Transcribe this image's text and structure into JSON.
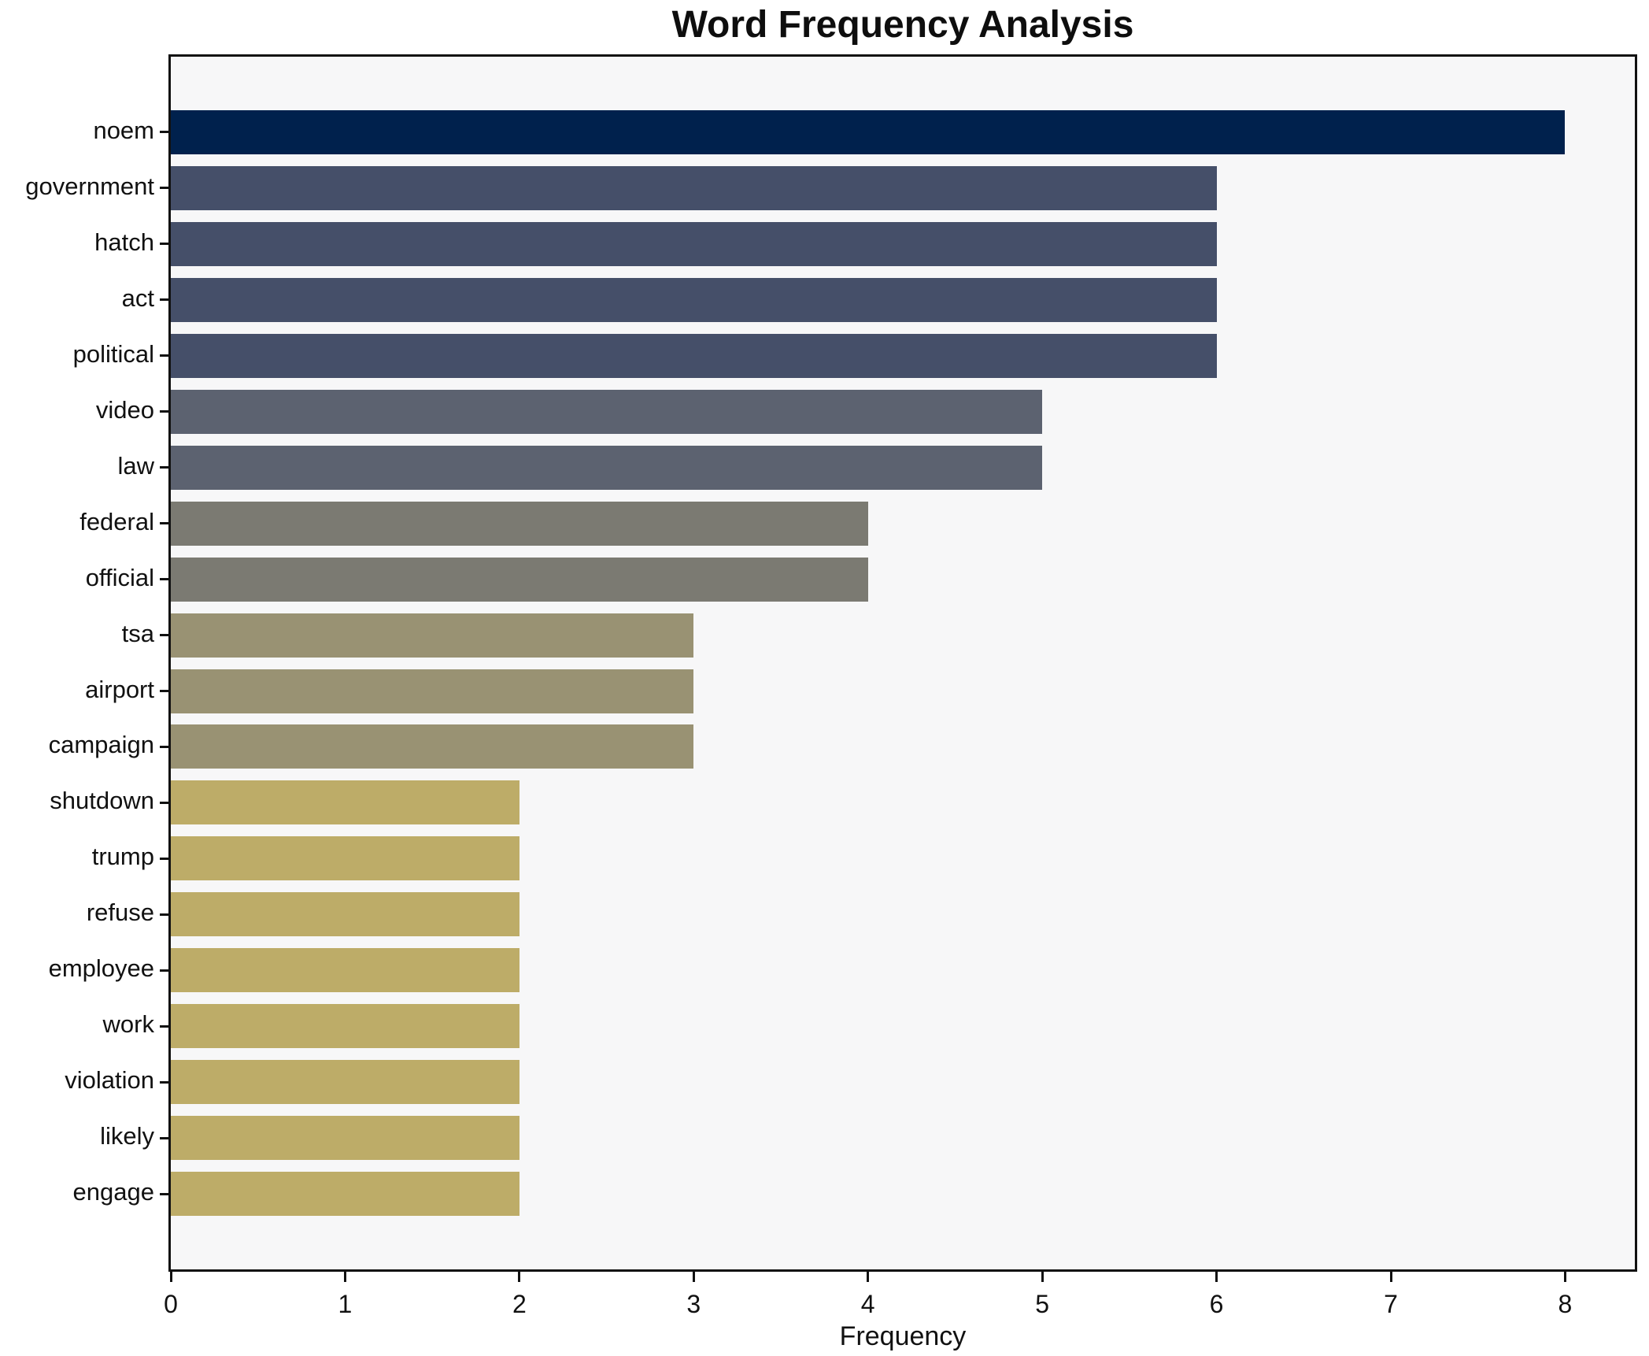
{
  "chart_data": {
    "type": "bar",
    "orientation": "horizontal",
    "title": "Word Frequency Analysis",
    "xlabel": "Frequency",
    "ylabel": "",
    "xlim": [
      0,
      8.4
    ],
    "x_ticks": [
      "0",
      "1",
      "2",
      "3",
      "4",
      "5",
      "6",
      "7",
      "8"
    ],
    "grid": false,
    "legend": false,
    "plot_background": "#f7f7f8",
    "spine_color": "#111111",
    "categories": [
      "noem",
      "government",
      "hatch",
      "act",
      "political",
      "video",
      "law",
      "federal",
      "official",
      "tsa",
      "airport",
      "campaign",
      "shutdown",
      "trump",
      "refuse",
      "employee",
      "work",
      "violation",
      "likely",
      "engage"
    ],
    "values": [
      8,
      6,
      6,
      6,
      6,
      5,
      5,
      4,
      4,
      3,
      3,
      3,
      2,
      2,
      2,
      2,
      2,
      2,
      2,
      2
    ],
    "bar_colors": [
      "#00214d",
      "#454f69",
      "#454f69",
      "#454f69",
      "#454f69",
      "#5c6270",
      "#5c6270",
      "#7b7a72",
      "#7b7a72",
      "#999273",
      "#999273",
      "#999273",
      "#bdac68",
      "#bdac68",
      "#bdac68",
      "#bdac68",
      "#bdac68",
      "#bdac68",
      "#bdac68",
      "#bdac68"
    ]
  }
}
